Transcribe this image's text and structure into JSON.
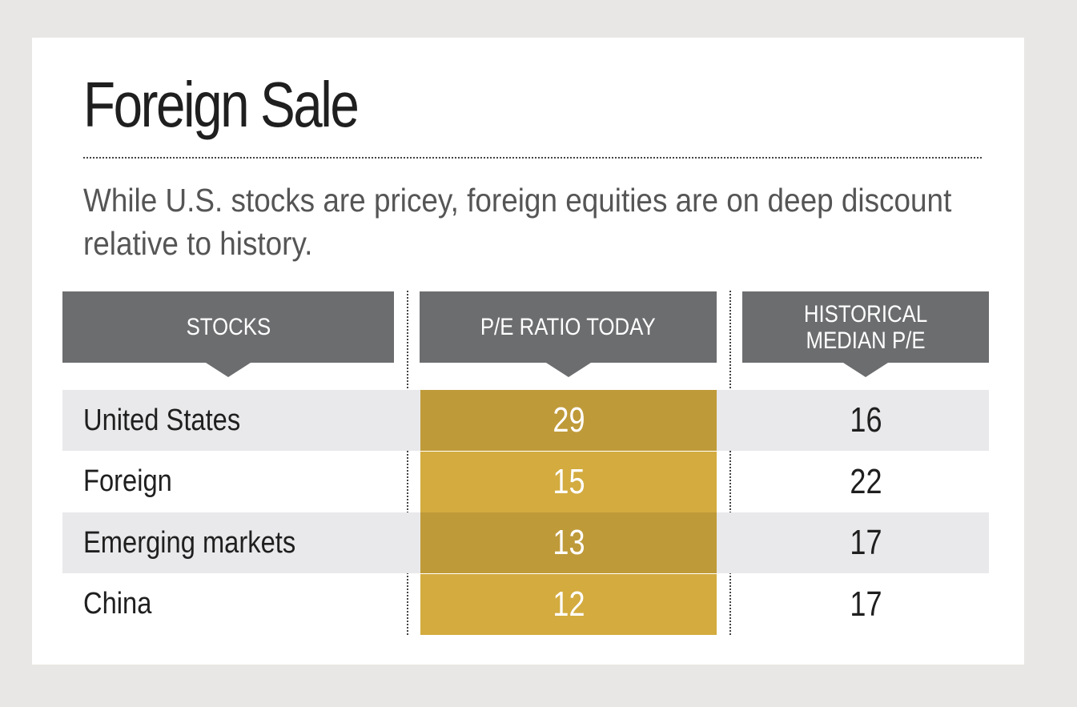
{
  "title": "Foreign Sale",
  "subtitle": "While U.S. stocks are pricey, foreign equities are on deep discount relative to history.",
  "colors": {
    "header_bg": "#6c6d6f",
    "highlight_dark": "#bf9a39",
    "highlight_light": "#d3ab3f",
    "row_shade": "#e9e9eb"
  },
  "chart_data": {
    "type": "table",
    "title": "Foreign Sale",
    "subtitle": "While U.S. stocks are pricey, foreign equities are on deep discount relative to history.",
    "columns": [
      "STOCKS",
      "P/E RATIO TODAY",
      "HISTORICAL MEDIAN P/E"
    ],
    "rows": [
      {
        "stock": "United States",
        "pe_today": 29,
        "historical_median_pe": 16
      },
      {
        "stock": "Foreign",
        "pe_today": 15,
        "historical_median_pe": 22
      },
      {
        "stock": "Emerging markets",
        "pe_today": 13,
        "historical_median_pe": 17
      },
      {
        "stock": "China",
        "pe_today": 12,
        "historical_median_pe": 17
      }
    ]
  }
}
